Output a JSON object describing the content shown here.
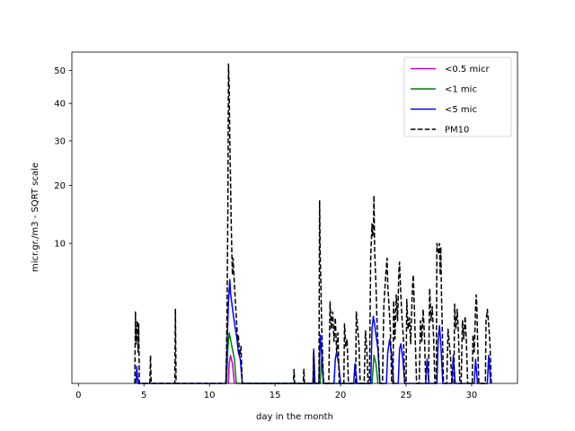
{
  "chart_data": {
    "type": "line",
    "xlabel": "day in the month",
    "ylabel": "micr.gr./m3 - SQRT scale",
    "y_scale": "sqrt",
    "xlim": [
      -0.5,
      33.5
    ],
    "ylim": [
      0,
      56
    ],
    "x_ticks": [
      0,
      5,
      10,
      15,
      20,
      25,
      30
    ],
    "y_ticks": [
      10,
      20,
      30,
      40,
      50
    ],
    "grid": false,
    "legend_position": "upper-right",
    "series": [
      {
        "name": "<0.5 micr",
        "color": "#bf00bf",
        "style": "solid",
        "points": [
          [
            11.45,
            0.0
          ],
          [
            11.5,
            0.2
          ],
          [
            11.6,
            0.4
          ],
          [
            11.75,
            0.2
          ],
          [
            11.9,
            0.0
          ]
        ]
      },
      {
        "name": "<1 mic",
        "color": "#008000",
        "style": "solid",
        "points": [
          [
            11.3,
            0.0
          ],
          [
            11.4,
            0.6
          ],
          [
            11.5,
            1.3
          ],
          [
            11.6,
            1.0
          ],
          [
            11.75,
            0.6
          ],
          [
            11.9,
            0.3
          ],
          [
            12.05,
            0.0
          ],
          [
            18.45,
            0.0
          ],
          [
            18.55,
            0.3
          ],
          [
            18.7,
            0.0
          ],
          [
            22.4,
            0.0
          ],
          [
            22.55,
            0.4
          ],
          [
            22.7,
            0.2
          ],
          [
            22.85,
            0.0
          ]
        ]
      },
      {
        "name": "<5 mic",
        "color": "#0000ff",
        "style": "solid",
        "points": [
          [
            4.4,
            0.0
          ],
          [
            4.45,
            0.15
          ],
          [
            4.55,
            0.0
          ],
          [
            11.25,
            0.0
          ],
          [
            11.35,
            0.9
          ],
          [
            11.45,
            3.5
          ],
          [
            11.55,
            5.5
          ],
          [
            11.6,
            4.2
          ],
          [
            11.7,
            3.3
          ],
          [
            11.8,
            2.5
          ],
          [
            11.9,
            1.9
          ],
          [
            12.0,
            1.4
          ],
          [
            12.1,
            1.0
          ],
          [
            12.2,
            0.5
          ],
          [
            12.35,
            0.3
          ],
          [
            12.5,
            0.0
          ],
          [
            17.9,
            0.0
          ],
          [
            17.95,
            0.6
          ],
          [
            18.05,
            0.0
          ],
          [
            18.35,
            0.0
          ],
          [
            18.45,
            1.2
          ],
          [
            18.55,
            0.5
          ],
          [
            18.7,
            0.0
          ],
          [
            19.5,
            0.0
          ],
          [
            19.6,
            0.3
          ],
          [
            19.7,
            0.5
          ],
          [
            19.85,
            0.2
          ],
          [
            20.0,
            0.0
          ],
          [
            21.0,
            0.0
          ],
          [
            21.1,
            0.2
          ],
          [
            21.25,
            0.0
          ],
          [
            22.3,
            0.0
          ],
          [
            22.4,
            1.5
          ],
          [
            22.5,
            2.3
          ],
          [
            22.6,
            1.8
          ],
          [
            22.7,
            1.2
          ],
          [
            22.85,
            0.6
          ],
          [
            23.0,
            0.0
          ],
          [
            23.5,
            0.0
          ],
          [
            23.6,
            0.5
          ],
          [
            23.75,
            1.0
          ],
          [
            23.9,
            0.4
          ],
          [
            24.05,
            0.0
          ],
          [
            24.4,
            0.0
          ],
          [
            24.5,
            0.6
          ],
          [
            24.6,
            0.8
          ],
          [
            24.75,
            0.3
          ],
          [
            24.9,
            0.0
          ],
          [
            26.5,
            0.0
          ],
          [
            26.6,
            0.3
          ],
          [
            26.75,
            0.0
          ],
          [
            27.35,
            0.0
          ],
          [
            27.45,
            1.0
          ],
          [
            27.55,
            1.7
          ],
          [
            27.65,
            0.8
          ],
          [
            27.8,
            0.0
          ],
          [
            28.5,
            0.0
          ],
          [
            28.6,
            0.4
          ],
          [
            28.75,
            0.0
          ],
          [
            30.2,
            0.0
          ],
          [
            30.3,
            0.3
          ],
          [
            30.45,
            0.0
          ],
          [
            31.2,
            0.0
          ],
          [
            31.3,
            0.4
          ],
          [
            31.45,
            0.0
          ]
        ]
      },
      {
        "name": "PM10",
        "color": "#000000",
        "style": "dashed",
        "points": [
          [
            4.3,
            0.0
          ],
          [
            4.35,
            2.6
          ],
          [
            4.4,
            0.8
          ],
          [
            4.45,
            1.4
          ],
          [
            4.5,
            2.0
          ],
          [
            4.55,
            0.5
          ],
          [
            4.6,
            1.8
          ],
          [
            4.65,
            0.0
          ],
          [
            5.45,
            0.0
          ],
          [
            5.5,
            0.4
          ],
          [
            5.55,
            0.0
          ],
          [
            7.35,
            0.0
          ],
          [
            7.4,
            2.8
          ],
          [
            7.45,
            0.0
          ],
          [
            11.25,
            0.0
          ],
          [
            11.3,
            0.5
          ],
          [
            11.35,
            4.0
          ],
          [
            11.4,
            15.0
          ],
          [
            11.45,
            52.0
          ],
          [
            11.5,
            45.0
          ],
          [
            11.55,
            30.0
          ],
          [
            11.6,
            22.0
          ],
          [
            11.65,
            14.0
          ],
          [
            11.7,
            9.0
          ],
          [
            11.75,
            6.0
          ],
          [
            11.8,
            8.0
          ],
          [
            11.9,
            5.0
          ],
          [
            12.0,
            3.0
          ],
          [
            12.1,
            1.5
          ],
          [
            12.15,
            0.9
          ],
          [
            12.2,
            1.2
          ],
          [
            12.3,
            0.4
          ],
          [
            12.4,
            0.7
          ],
          [
            12.5,
            0.0
          ],
          [
            16.4,
            0.0
          ],
          [
            16.45,
            0.1
          ],
          [
            16.5,
            0.0
          ],
          [
            17.15,
            0.0
          ],
          [
            17.2,
            0.1
          ],
          [
            17.25,
            0.0
          ],
          [
            17.9,
            0.0
          ],
          [
            17.95,
            0.5
          ],
          [
            18.0,
            0.0
          ],
          [
            18.35,
            0.0
          ],
          [
            18.4,
            17.0
          ],
          [
            18.45,
            8.0
          ],
          [
            18.5,
            5.0
          ],
          [
            18.55,
            2.0
          ],
          [
            18.6,
            0.8
          ],
          [
            18.7,
            0.0
          ],
          [
            19.1,
            0.0
          ],
          [
            19.2,
            3.4
          ],
          [
            19.3,
            1.5
          ],
          [
            19.4,
            2.6
          ],
          [
            19.5,
            0.9
          ],
          [
            19.6,
            2.2
          ],
          [
            19.7,
            0.5
          ],
          [
            19.8,
            1.3
          ],
          [
            19.9,
            0.0
          ],
          [
            20.25,
            0.0
          ],
          [
            20.3,
            1.8
          ],
          [
            20.4,
            0.7
          ],
          [
            20.5,
            1.0
          ],
          [
            20.6,
            0.0
          ],
          [
            21.15,
            0.0
          ],
          [
            21.2,
            2.6
          ],
          [
            21.3,
            1.6
          ],
          [
            21.4,
            0.8
          ],
          [
            21.5,
            0.0
          ],
          [
            21.8,
            0.0
          ],
          [
            21.9,
            1.4
          ],
          [
            22.0,
            0.6
          ],
          [
            22.1,
            0.0
          ],
          [
            22.2,
            0.0
          ],
          [
            22.3,
            8.0
          ],
          [
            22.4,
            13.0
          ],
          [
            22.45,
            11.0
          ],
          [
            22.5,
            12.0
          ],
          [
            22.55,
            18.0
          ],
          [
            22.6,
            9.0
          ],
          [
            22.7,
            5.0
          ],
          [
            22.8,
            1.5
          ],
          [
            22.9,
            0.4
          ],
          [
            23.0,
            0.0
          ],
          [
            23.2,
            0.0
          ],
          [
            23.3,
            3.0
          ],
          [
            23.4,
            5.0
          ],
          [
            23.5,
            7.0
          ],
          [
            23.55,
            8.0
          ],
          [
            23.6,
            5.0
          ],
          [
            23.7,
            3.0
          ],
          [
            23.8,
            1.5
          ],
          [
            23.9,
            0.0
          ],
          [
            24.0,
            0.0
          ],
          [
            24.05,
            3.5
          ],
          [
            24.15,
            1.0
          ],
          [
            24.25,
            4.0
          ],
          [
            24.35,
            2.0
          ],
          [
            24.45,
            6.5
          ],
          [
            24.5,
            7.5
          ],
          [
            24.6,
            4.0
          ],
          [
            24.7,
            2.0
          ],
          [
            24.8,
            1.0
          ],
          [
            24.9,
            0.0
          ],
          [
            25.0,
            0.0
          ],
          [
            25.05,
            3.6
          ],
          [
            25.15,
            1.5
          ],
          [
            25.25,
            2.2
          ],
          [
            25.35,
            0.8
          ],
          [
            25.45,
            3.5
          ],
          [
            25.5,
            5.0
          ],
          [
            25.55,
            6.0
          ],
          [
            25.6,
            4.0
          ],
          [
            25.7,
            1.0
          ],
          [
            25.8,
            0.0
          ],
          [
            26.0,
            0.0
          ],
          [
            26.1,
            2.0
          ],
          [
            26.2,
            0.9
          ],
          [
            26.3,
            2.8
          ],
          [
            26.4,
            1.2
          ],
          [
            26.5,
            0.0
          ],
          [
            26.7,
            0.0
          ],
          [
            26.8,
            4.6
          ],
          [
            26.9,
            2.0
          ],
          [
            27.0,
            3.0
          ],
          [
            27.1,
            1.0
          ],
          [
            27.2,
            0.0
          ],
          [
            27.3,
            0.0
          ],
          [
            27.35,
            10.0
          ],
          [
            27.45,
            9.0
          ],
          [
            27.5,
            8.5
          ],
          [
            27.55,
            10.0
          ],
          [
            27.6,
            6.0
          ],
          [
            27.65,
            9.5
          ],
          [
            27.7,
            4.0
          ],
          [
            27.75,
            2.0
          ],
          [
            27.85,
            0.0
          ],
          [
            28.1,
            0.0
          ],
          [
            28.2,
            1.5
          ],
          [
            28.3,
            0.8
          ],
          [
            28.4,
            0.3
          ],
          [
            28.5,
            0.0
          ],
          [
            28.65,
            0.0
          ],
          [
            28.7,
            3.2
          ],
          [
            28.8,
            1.5
          ],
          [
            28.9,
            2.8
          ],
          [
            29.0,
            1.2
          ],
          [
            29.1,
            0.0
          ],
          [
            29.2,
            0.0
          ],
          [
            29.3,
            2.0
          ],
          [
            29.4,
            1.0
          ],
          [
            29.5,
            2.3
          ],
          [
            29.6,
            0.9
          ],
          [
            29.7,
            0.0
          ],
          [
            30.05,
            0.0
          ],
          [
            30.1,
            1.2
          ],
          [
            30.2,
            0.5
          ],
          [
            30.3,
            2.8
          ],
          [
            30.35,
            4.0
          ],
          [
            30.4,
            3.0
          ],
          [
            30.45,
            1.0
          ],
          [
            30.55,
            0.0
          ],
          [
            31.05,
            0.0
          ],
          [
            31.1,
            2.0
          ],
          [
            31.2,
            2.8
          ],
          [
            31.3,
            1.8
          ],
          [
            31.4,
            0.8
          ],
          [
            31.5,
            0.0
          ]
        ]
      }
    ]
  }
}
